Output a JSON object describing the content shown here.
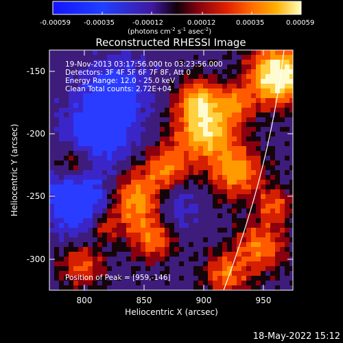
{
  "colorbar": {
    "ticks": [
      "-0.00059",
      "-0.00035",
      "-0.00012",
      "0.00012",
      "0.00035",
      "0.00059"
    ],
    "unit_label": "(photons cm",
    "unit_sup1": "-2",
    "unit_s": " s",
    "unit_sup2": "-1",
    "unit_asec": " asec",
    "unit_sup3": "-2",
    "unit_close": ")"
  },
  "plot": {
    "title": "Reconstructed RHESSI Image",
    "info_lines": [
      "19-Nov-2013 03:17:56.000 to 03:23:56.000",
      "Detectors: 3F 4F 5F 6F 7F 8F, Att 0",
      "Energy Range: 12.0 - 25.0 keV",
      "Clean     Total counts: 2.72E+04"
    ],
    "peak_label": "Position of Peak = [959,-146]",
    "xlabel": "Heliocentric X (arcsec)",
    "ylabel": "Heliocentric Y (arcsec)",
    "xticks": [
      "800",
      "850",
      "900",
      "950"
    ],
    "yticks": [
      "-150",
      "-200",
      "-250",
      "-300"
    ],
    "xlim": [
      776,
      968
    ],
    "ylim": [
      -327,
      -128
    ]
  },
  "footer": {
    "date": "18-May-2022 15:12"
  },
  "colors": {
    "background": "#000000",
    "text": "#ffffff",
    "limb": "#ffffff"
  }
}
